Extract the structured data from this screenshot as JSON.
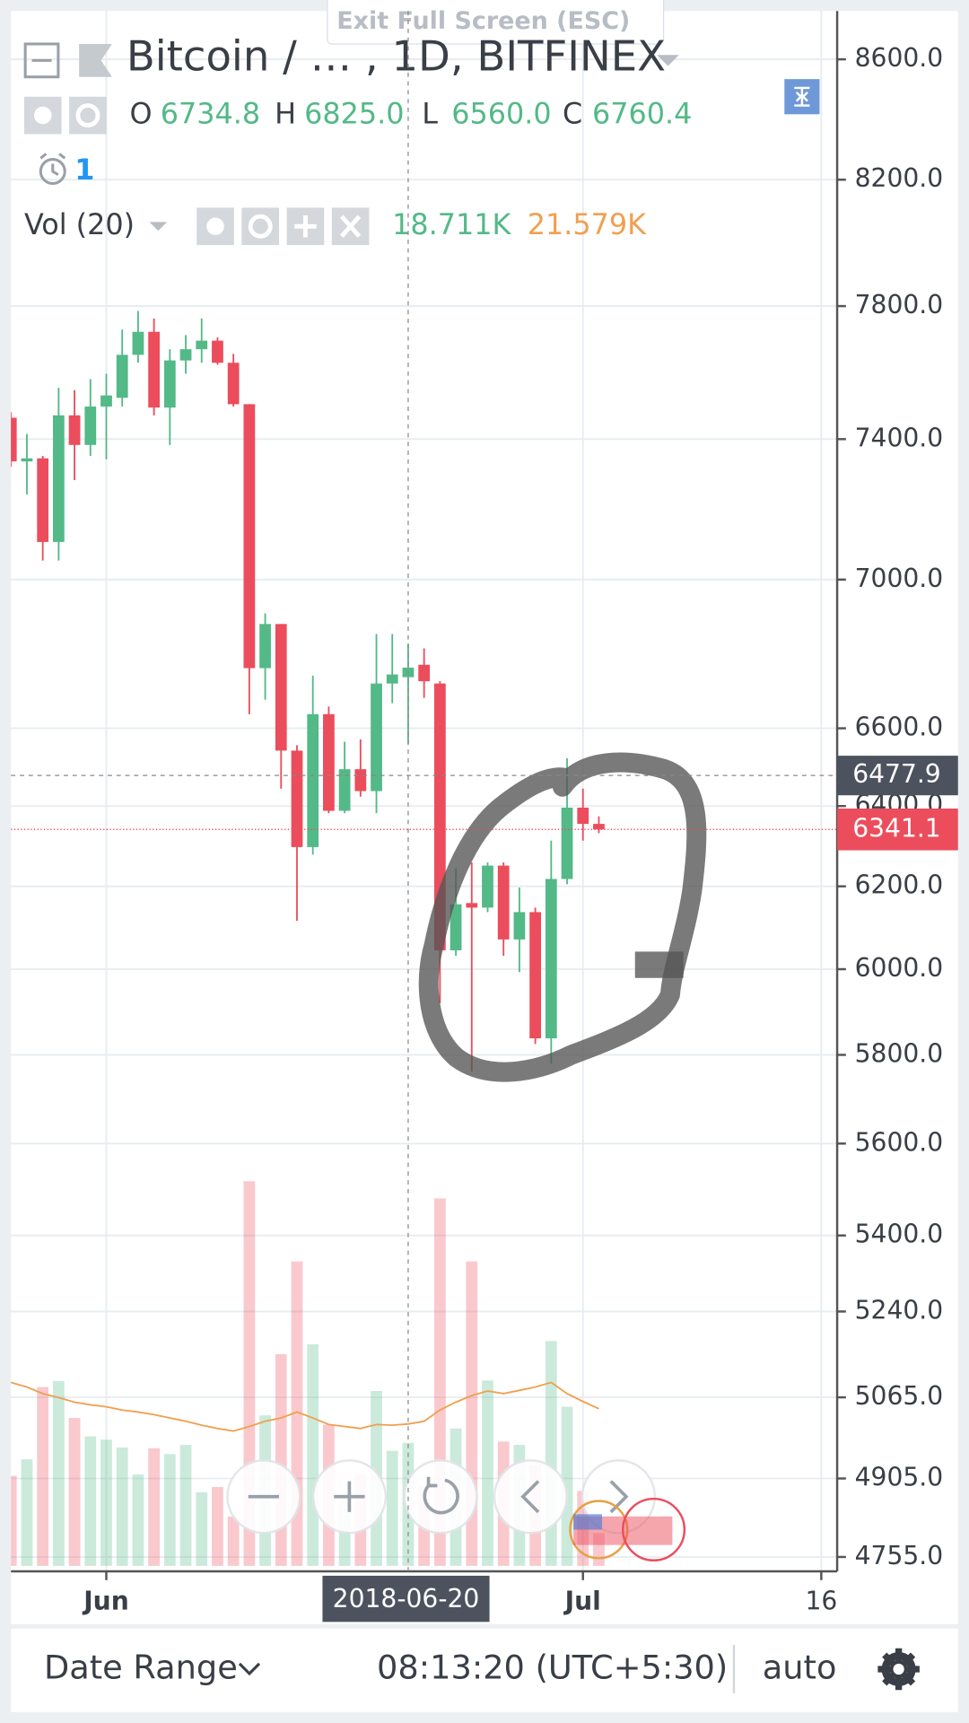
{
  "header": {
    "exit_full_screen": "Exit Full Screen (ESC)",
    "alert_count": 1
  },
  "chart_data": {
    "type": "candlestick",
    "title": "Bitcoin / …  , 1D, BITFINEX",
    "x": [
      "2018-05-26",
      "2018-05-27",
      "2018-05-28",
      "2018-05-29",
      "2018-05-30",
      "2018-05-31",
      "2018-06-01",
      "2018-06-02",
      "2018-06-03",
      "2018-06-04",
      "2018-06-05",
      "2018-06-06",
      "2018-06-07",
      "2018-06-08",
      "2018-06-09",
      "2018-06-10",
      "2018-06-11",
      "2018-06-12",
      "2018-06-13",
      "2018-06-14",
      "2018-06-15",
      "2018-06-16",
      "2018-06-17",
      "2018-06-18",
      "2018-06-19",
      "2018-06-20",
      "2018-06-21",
      "2018-06-22",
      "2018-06-23",
      "2018-06-24",
      "2018-06-25",
      "2018-06-26",
      "2018-06-27",
      "2018-06-28",
      "2018-06-29",
      "2018-06-30",
      "2018-07-01",
      "2018-07-02"
    ],
    "open": [
      7463,
      7335,
      7344,
      7105,
      7470,
      7383,
      7496,
      7522,
      7651,
      7721,
      7493,
      7634,
      7668,
      7694,
      7627,
      7503,
      6759,
      6878,
      6542,
      6297,
      6637,
      6388,
      6494,
      6438,
      6718,
      6734.8,
      6768,
      6718,
      6045,
      6159,
      6148,
      6251,
      6071,
      6137,
      5838,
      6218,
      6396,
      6355
    ],
    "high": [
      7479,
      7415,
      7351,
      7552,
      7545,
      7578,
      7594,
      7728,
      7785,
      7762,
      7668,
      7711,
      7762,
      7704,
      7654,
      7503,
      6907,
      6878,
      6556,
      6739,
      6657,
      6565,
      6571,
      6851,
      6851,
      6825.0,
      6812,
      6724,
      6245,
      6259,
      6259,
      6259,
      6197,
      6148,
      6313,
      6522,
      6444,
      6374
    ],
    "low": [
      7319,
      7240,
      7053,
      7053,
      7281,
      7351,
      7341,
      7496,
      7627,
      7470,
      7383,
      7594,
      7627,
      7621,
      7496,
      6637,
      6675,
      6444,
      6116,
      6278,
      6382,
      6382,
      6424,
      6382,
      6666,
      6560.0,
      6680,
      5920,
      6032,
      5762,
      6137,
      6032,
      5993,
      5825,
      5780,
      6205,
      6313,
      6332
    ],
    "close": [
      7335,
      7344,
      7105,
      7470,
      7383,
      7496,
      7529,
      7651,
      7721,
      7493,
      7634,
      7668,
      7694,
      7627,
      7503,
      6759,
      6878,
      6542,
      6297,
      6637,
      6388,
      6494,
      6438,
      6718,
      6742,
      6760.4,
      6724,
      6045,
      6156,
      6148,
      6251,
      6071,
      6137,
      5838,
      6218,
      6396,
      6355,
      6341.1
    ],
    "volume": [
      13700,
      16200,
      27200,
      28100,
      22500,
      19700,
      19200,
      18000,
      13900,
      17900,
      17000,
      18400,
      11200,
      12000,
      7500,
      58500,
      22900,
      32200,
      46300,
      33700,
      21500,
      10000,
      13900,
      26600,
      17500,
      18711,
      12200,
      55900,
      20900,
      46300,
      28200,
      18900,
      18400,
      15400,
      34200,
      24200,
      11400,
      5000
    ],
    "volume_ma": [
      27900,
      27200,
      26200,
      25600,
      24900,
      24500,
      24200,
      23700,
      23400,
      23000,
      22500,
      22000,
      21400,
      20900,
      20500,
      21200,
      22000,
      22500,
      23400,
      22500,
      21500,
      21200,
      20900,
      21500,
      21400,
      21579,
      22000,
      23700,
      24900,
      25900,
      26600,
      26200,
      26700,
      27200,
      27900,
      26200,
      25000,
      23900
    ],
    "up_color": "#53b987",
    "down_color": "#eb4d5c",
    "volume_ma_color": "#f0a050",
    "log_scale": true,
    "grid": true,
    "ylim": [
      4728,
      8766
    ],
    "yticks": [
      {
        "value": 8600,
        "label": "8600.0"
      },
      {
        "value": 8200,
        "label": "8200.0"
      },
      {
        "value": 7800,
        "label": "7800.0"
      },
      {
        "value": 7400,
        "label": "7400.0"
      },
      {
        "value": 7000,
        "label": "7000.0"
      },
      {
        "value": 6600,
        "label": "6600.0"
      },
      {
        "value": 6400,
        "label": "6400.0"
      },
      {
        "value": 6200,
        "label": "6200.0"
      },
      {
        "value": 6000,
        "label": "6000.0"
      },
      {
        "value": 5800,
        "label": "5800.0"
      },
      {
        "value": 5600,
        "label": "5600.0"
      },
      {
        "value": 5400,
        "label": "5400.0"
      },
      {
        "value": 5240,
        "label": "5240.0"
      },
      {
        "value": 5065,
        "label": "5065.0"
      },
      {
        "value": 4905,
        "label": "4905.0"
      },
      {
        "value": 4755,
        "label": "4755.0"
      }
    ],
    "xlim": [
      "2018-05-26",
      "2018-07-17"
    ],
    "xticks": [
      {
        "value": "2018-06-01",
        "label": "Jun"
      },
      {
        "value": "2018-07-01",
        "label": "Jul"
      },
      {
        "value": "2018-07-16",
        "label": "16"
      }
    ],
    "last_price": 6341.1,
    "crosshair": {
      "date": "2018-06-20",
      "price": 6477.9,
      "ohlc_keys": [
        "O",
        "H",
        "L",
        "C"
      ],
      "ohlc_labels": [
        "6734.8",
        "6825.0",
        "6560.0",
        "6760.4"
      ],
      "volume_name": "Vol (20)",
      "volume_labels": [
        "18.711K",
        "21.579K"
      ]
    }
  },
  "footer": {
    "date_range": "Date Range",
    "time": "08:13:20 (UTC+5:30)",
    "scale_mode": "auto"
  }
}
